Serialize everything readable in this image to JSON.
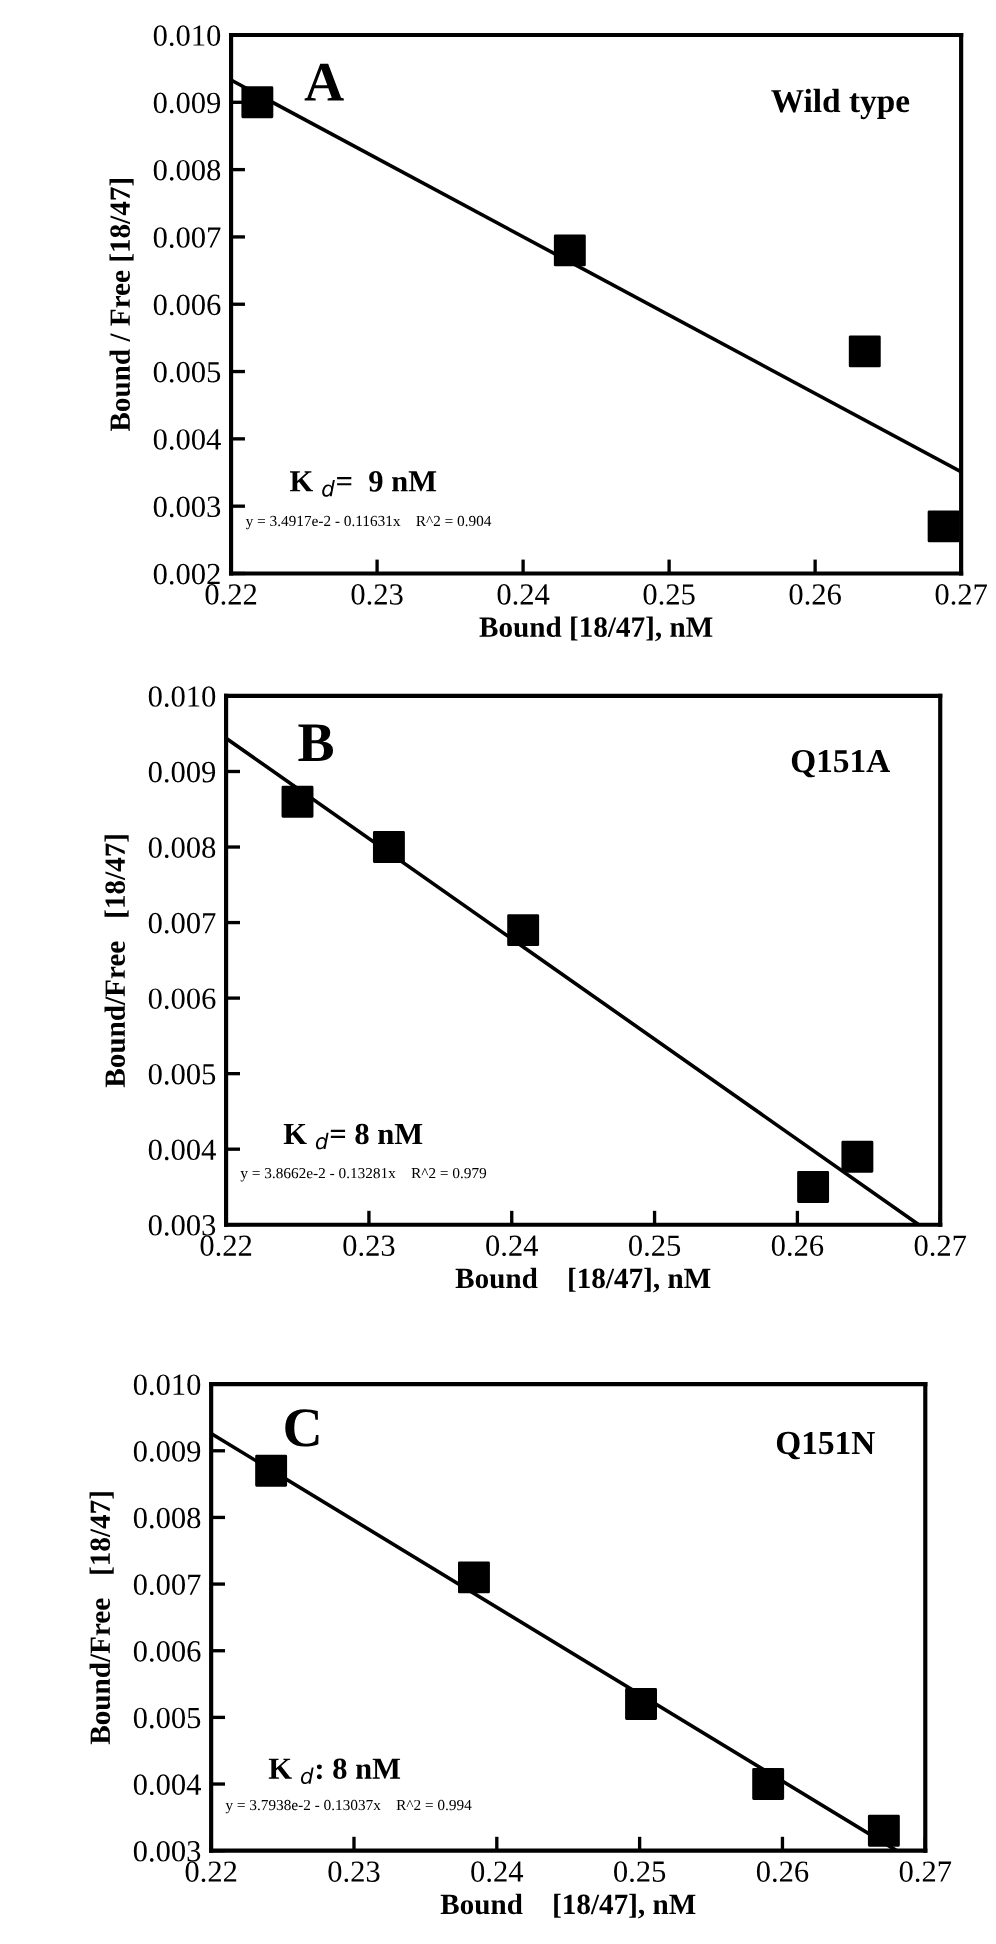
{
  "chart_data": [
    {
      "type": "scatter",
      "xlabel": "Bound [18/47], nM",
      "ylabel": "Bound / Free [18/47]",
      "xlim": [
        0.22,
        0.27
      ],
      "ylim": [
        0.002,
        0.01
      ],
      "xticks": [
        {
          "value": 0.22,
          "label": "0.22"
        },
        {
          "value": 0.23,
          "label": "0.23"
        },
        {
          "value": 0.24,
          "label": "0.24"
        },
        {
          "value": 0.25,
          "label": "0.25"
        },
        {
          "value": 0.26,
          "label": "0.26"
        },
        {
          "value": 0.27,
          "label": "0.27"
        }
      ],
      "yticks": [
        {
          "value": 0.002,
          "label": "0.002"
        },
        {
          "value": 0.003,
          "label": "0.003"
        },
        {
          "value": 0.004,
          "label": "0.004"
        },
        {
          "value": 0.005,
          "label": "0.005"
        },
        {
          "value": 0.006,
          "label": "0.006"
        },
        {
          "value": 0.007,
          "label": "0.007"
        },
        {
          "value": 0.008,
          "label": "0.008"
        },
        {
          "value": 0.009,
          "label": "0.009"
        },
        {
          "value": 0.01,
          "label": "0.010"
        }
      ],
      "grid": false,
      "series": [
        {
          "marker": "square",
          "color": "#000000",
          "x": [
            0.2218,
            0.2432,
            0.2634,
            0.2688
          ],
          "values": [
            0.009,
            0.0068,
            0.0053,
            0.0027
          ]
        },
        {
          "type": "line",
          "marker": "none",
          "color": "#000000",
          "x": [
            0.22,
            0.27
          ],
          "values": [
            0.00933,
            0.00351
          ]
        }
      ],
      "annotations": [
        "A",
        "Wild type",
        "K $_{d}$=  9 nM",
        "y = 3.4917e-2 - 0.11631x    R^2 = 0.904"
      ]
    },
    {
      "type": "scatter",
      "xlabel": "Bound    [18/47], nM",
      "ylabel": "Bound/Free   [18/47]",
      "xlim": [
        0.22,
        0.27
      ],
      "ylim": [
        0.003,
        0.01
      ],
      "xticks": [
        {
          "value": 0.22,
          "label": "0.22"
        },
        {
          "value": 0.23,
          "label": "0.23"
        },
        {
          "value": 0.24,
          "label": "0.24"
        },
        {
          "value": 0.25,
          "label": "0.25"
        },
        {
          "value": 0.26,
          "label": "0.26"
        },
        {
          "value": 0.27,
          "label": "0.27"
        }
      ],
      "yticks": [
        {
          "value": 0.003,
          "label": "0.003"
        },
        {
          "value": 0.004,
          "label": "0.004"
        },
        {
          "value": 0.005,
          "label": "0.005"
        },
        {
          "value": 0.006,
          "label": "0.006"
        },
        {
          "value": 0.007,
          "label": "0.007"
        },
        {
          "value": 0.008,
          "label": "0.008"
        },
        {
          "value": 0.009,
          "label": "0.009"
        },
        {
          "value": 0.01,
          "label": "0.010"
        }
      ],
      "grid": false,
      "series": [
        {
          "marker": "square",
          "color": "#000000",
          "x": [
            0.225,
            0.2314,
            0.2408,
            0.2611,
            0.2642
          ],
          "values": [
            0.0086,
            0.008,
            0.0069,
            0.0035,
            0.0039
          ]
        },
        {
          "type": "line",
          "marker": "none",
          "color": "#000000",
          "x": [
            0.22,
            0.2685
          ],
          "values": [
            0.00944,
            0.003
          ]
        }
      ],
      "annotations": [
        "B",
        "Q151A",
        "K $_{d}$= 8 nM",
        "y = 3.8662e-2 - 0.13281x    R^2 = 0.979"
      ]
    },
    {
      "type": "scatter",
      "xlabel": "Bound    [18/47], nM",
      "ylabel": "Bound/Free   [18/47]",
      "xlim": [
        0.22,
        0.27
      ],
      "ylim": [
        0.003,
        0.01
      ],
      "xticks": [
        {
          "value": 0.22,
          "label": "0.22"
        },
        {
          "value": 0.23,
          "label": "0.23"
        },
        {
          "value": 0.24,
          "label": "0.24"
        },
        {
          "value": 0.25,
          "label": "0.25"
        },
        {
          "value": 0.26,
          "label": "0.26"
        },
        {
          "value": 0.27,
          "label": "0.27"
        }
      ],
      "yticks": [
        {
          "value": 0.003,
          "label": "0.003"
        },
        {
          "value": 0.004,
          "label": "0.004"
        },
        {
          "value": 0.005,
          "label": "0.005"
        },
        {
          "value": 0.006,
          "label": "0.006"
        },
        {
          "value": 0.007,
          "label": "0.007"
        },
        {
          "value": 0.008,
          "label": "0.008"
        },
        {
          "value": 0.009,
          "label": "0.009"
        },
        {
          "value": 0.01,
          "label": "0.010"
        }
      ],
      "grid": false,
      "series": [
        {
          "marker": "square",
          "color": "#000000",
          "x": [
            0.2242,
            0.2384,
            0.2501,
            0.259,
            0.2671
          ],
          "values": [
            0.0087,
            0.0071,
            0.0052,
            0.004,
            0.0033
          ]
        },
        {
          "type": "line",
          "marker": "none",
          "color": "#000000",
          "x": [
            0.22,
            0.268
          ],
          "values": [
            0.00926,
            0.003
          ]
        }
      ],
      "annotations": [
        "C",
        "Q151N",
        "K $_{d}$: 8 nM",
        "y = 3.7938e-2 - 0.13037x    R^2 = 0.994"
      ]
    }
  ]
}
